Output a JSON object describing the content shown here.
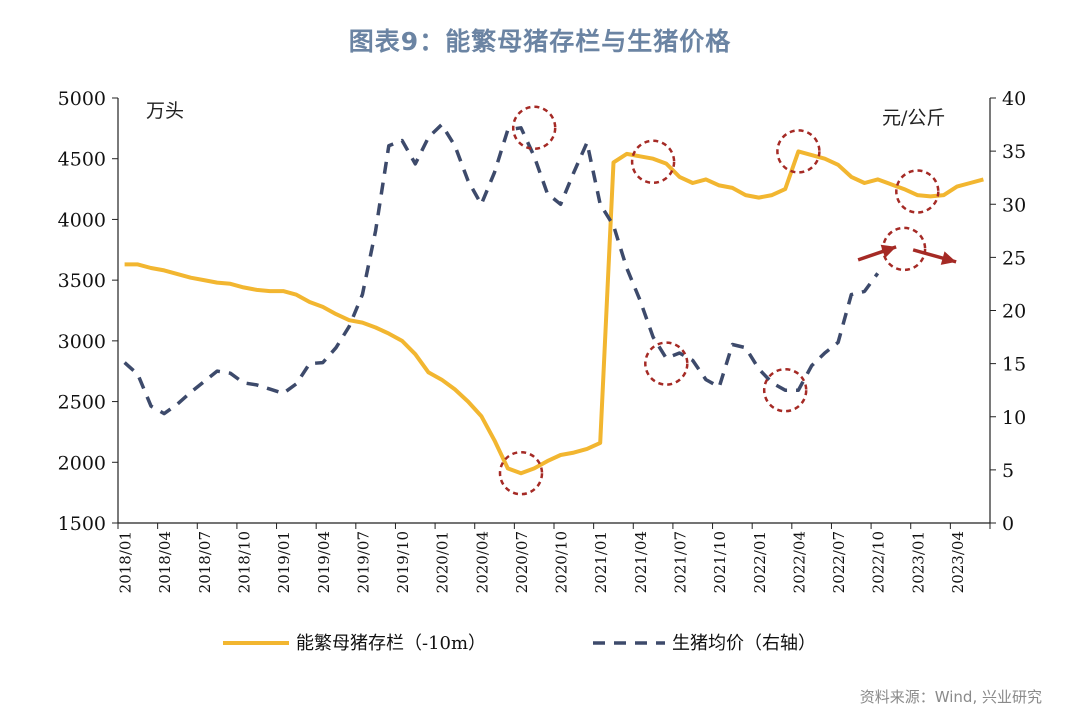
{
  "title": "图表9：能繁母猪存栏与生猪价格",
  "source": "资料来源：Wind, 兴业研究",
  "chart_data": {
    "type": "line",
    "left_unit": "万头",
    "right_unit": "元/公斤",
    "y_left": {
      "min": 1500,
      "max": 5000,
      "ticks": [
        1500,
        2000,
        2500,
        3000,
        3500,
        4000,
        4500,
        5000
      ]
    },
    "y_right": {
      "min": 0,
      "max": 40,
      "ticks": [
        0,
        5,
        10,
        15,
        20,
        25,
        30,
        35,
        40
      ]
    },
    "x_start": "2018/01",
    "x_end": "2023/06",
    "x_tick_labels": [
      "2018/01",
      "2018/04",
      "2018/07",
      "2018/10",
      "2019/01",
      "2019/04",
      "2019/07",
      "2019/10",
      "2020/01",
      "2020/04",
      "2020/07",
      "2020/10",
      "2021/01",
      "2021/04",
      "2021/07",
      "2021/10",
      "2022/01",
      "2022/04",
      "2022/07",
      "2022/10",
      "2023/01",
      "2023/04"
    ],
    "legend": [
      {
        "name": "能繁母猪存栏（-10m）",
        "style": "solid",
        "color": "#f2b630"
      },
      {
        "name": "生猪均价（右轴）",
        "style": "dashed",
        "color": "#3d4a6b"
      }
    ],
    "series": [
      {
        "name": "能繁母猪存栏（-10m）",
        "axis": "left",
        "color": "#f2b630",
        "x": [
          "2018/01",
          "2018/02",
          "2018/03",
          "2018/04",
          "2018/05",
          "2018/06",
          "2018/07",
          "2018/08",
          "2018/09",
          "2018/10",
          "2018/11",
          "2018/12",
          "2019/01",
          "2019/02",
          "2019/03",
          "2019/04",
          "2019/05",
          "2019/06",
          "2019/07",
          "2019/08",
          "2019/09",
          "2019/10",
          "2019/11",
          "2019/12",
          "2020/01",
          "2020/02",
          "2020/03",
          "2020/04",
          "2020/05",
          "2020/06",
          "2020/07",
          "2020/08",
          "2020/09",
          "2020/10",
          "2020/11",
          "2020/12",
          "2021/01",
          "2021/02",
          "2021/03",
          "2021/04",
          "2021/05",
          "2021/06",
          "2021/07",
          "2021/08",
          "2021/09",
          "2021/10",
          "2021/11",
          "2021/12",
          "2022/01",
          "2022/02",
          "2022/03",
          "2022/04",
          "2022/05",
          "2022/06",
          "2022/07",
          "2022/08",
          "2022/09",
          "2022/10",
          "2022/11",
          "2022/12",
          "2023/01",
          "2023/02",
          "2023/03",
          "2023/04",
          "2023/05",
          "2023/06"
        ],
        "values": [
          3630,
          3630,
          3600,
          3580,
          3550,
          3520,
          3500,
          3480,
          3470,
          3440,
          3420,
          3410,
          3410,
          3380,
          3320,
          3280,
          3220,
          3170,
          3150,
          3110,
          3060,
          3000,
          2890,
          2740,
          2680,
          2600,
          2500,
          2380,
          2180,
          1950,
          1910,
          1950,
          2010,
          2060,
          2080,
          2110,
          2160,
          4470,
          4540,
          4520,
          4500,
          4460,
          4350,
          4300,
          4330,
          4280,
          4260,
          4200,
          4180,
          4200,
          4250,
          4560,
          4530,
          4500,
          4450,
          4350,
          4300,
          4330,
          4290,
          4250,
          4200,
          4190,
          4200,
          4270,
          4300,
          4330
        ]
      },
      {
        "name": "生猪均价（右轴）",
        "axis": "right",
        "color": "#3d4a6b",
        "x": [
          "2018/01",
          "2018/02",
          "2018/03",
          "2018/04",
          "2018/05",
          "2018/06",
          "2018/07",
          "2018/08",
          "2018/09",
          "2018/10",
          "2018/11",
          "2018/12",
          "2019/01",
          "2019/02",
          "2019/03",
          "2019/04",
          "2019/05",
          "2019/06",
          "2019/07",
          "2019/08",
          "2019/09",
          "2019/10",
          "2019/11",
          "2019/12",
          "2020/01",
          "2020/02",
          "2020/03",
          "2020/04",
          "2020/05",
          "2020/06",
          "2020/07",
          "2020/08",
          "2020/09",
          "2020/10",
          "2020/11",
          "2020/12",
          "2021/01",
          "2021/02",
          "2021/03",
          "2021/04",
          "2021/05",
          "2021/06",
          "2021/07",
          "2021/08",
          "2021/09",
          "2021/10",
          "2021/11",
          "2021/12",
          "2022/01",
          "2022/02",
          "2022/03",
          "2022/04",
          "2022/05",
          "2022/06",
          "2022/07",
          "2022/08",
          "2022/09",
          "2022/10"
        ],
        "values": [
          15.1,
          14.0,
          11.0,
          10.3,
          11.2,
          12.3,
          13.3,
          14.3,
          14.1,
          13.2,
          13.0,
          12.6,
          12.2,
          13.1,
          15.0,
          15.1,
          16.5,
          18.5,
          21.5,
          27.5,
          35.5,
          36.0,
          33.8,
          36.3,
          37.5,
          35.5,
          32.2,
          30.0,
          33.0,
          37.0,
          37.2,
          34.5,
          31.0,
          30.0,
          33.0,
          35.8,
          30.0,
          28.0,
          24.0,
          21.0,
          17.5,
          15.5,
          16.0,
          15.3,
          13.5,
          12.8,
          16.8,
          16.5,
          14.5,
          13.2,
          12.5,
          12.5,
          14.8,
          16.0,
          17.0,
          21.5,
          21.8,
          23.5
        ]
      }
    ]
  }
}
